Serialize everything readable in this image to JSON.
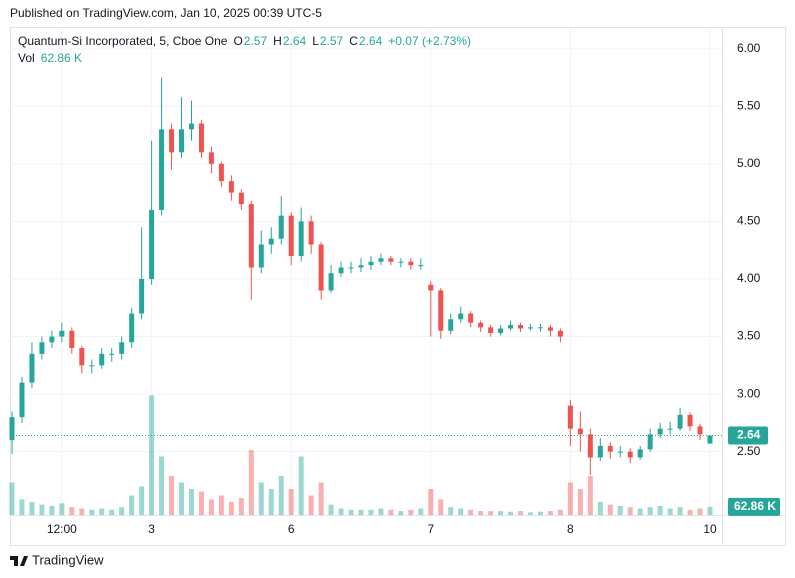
{
  "published": "Published on TradingView.com, Jan 10, 2025 00:39 UTC-5",
  "brand": "TradingView",
  "chart_data": {
    "type": "candlestick",
    "legend": {
      "symbol": "Quantum-Si Incorporated, 5, Cboe One",
      "ohlc": [
        {
          "key": "O",
          "value": 2.57
        },
        {
          "key": "H",
          "value": 2.64
        },
        {
          "key": "L",
          "value": 2.57
        },
        {
          "key": "C",
          "value": 2.64
        }
      ],
      "change": "+0.07 (+2.73%)"
    },
    "categories": [
      null,
      null,
      null,
      null,
      null,
      "12:00",
      null,
      null,
      null,
      null,
      null,
      null,
      null,
      null,
      "3",
      null,
      null,
      null,
      null,
      null,
      null,
      null,
      null,
      null,
      null,
      null,
      null,
      null,
      "6",
      null,
      null,
      null,
      null,
      null,
      null,
      null,
      null,
      null,
      null,
      null,
      null,
      null,
      "7",
      null,
      null,
      null,
      null,
      null,
      null,
      null,
      null,
      null,
      null,
      null,
      null,
      null,
      "8",
      null,
      null,
      null,
      null,
      null,
      null,
      null,
      null,
      null,
      null,
      null,
      null,
      null,
      "10"
    ],
    "open": [
      2.6,
      2.8,
      3.1,
      3.35,
      3.45,
      3.5,
      3.55,
      3.4,
      3.25,
      3.25,
      3.35,
      3.35,
      3.45,
      3.7,
      4.0,
      4.6,
      5.3,
      5.1,
      5.3,
      5.35,
      5.1,
      5.0,
      4.85,
      4.75,
      4.65,
      4.1,
      4.3,
      4.35,
      4.55,
      4.2,
      4.5,
      4.3,
      3.9,
      4.05,
      4.1,
      4.1,
      4.12,
      4.15,
      4.18,
      4.15,
      4.15,
      4.12,
      3.95,
      3.9,
      3.55,
      3.65,
      3.7,
      3.62,
      3.58,
      3.53,
      3.57,
      3.6,
      3.57,
      3.58,
      3.58,
      3.55,
      2.9,
      2.7,
      2.65,
      2.45,
      2.55,
      2.5,
      2.5,
      2.45,
      2.52,
      2.65,
      2.7,
      2.7,
      2.82,
      2.72,
      2.57
    ],
    "high": [
      2.85,
      3.15,
      3.45,
      3.5,
      3.55,
      3.62,
      3.58,
      3.42,
      3.3,
      3.4,
      3.4,
      3.5,
      3.75,
      4.45,
      5.2,
      5.75,
      5.35,
      5.58,
      5.55,
      5.38,
      5.15,
      5.02,
      4.9,
      4.78,
      4.68,
      4.42,
      4.45,
      4.72,
      4.58,
      4.62,
      4.55,
      4.32,
      4.12,
      4.15,
      4.15,
      4.18,
      4.2,
      4.22,
      4.2,
      4.18,
      4.18,
      4.18,
      3.98,
      3.92,
      3.7,
      3.76,
      3.72,
      3.64,
      3.6,
      3.6,
      3.64,
      3.62,
      3.61,
      3.61,
      3.6,
      3.57,
      2.95,
      2.85,
      2.7,
      2.62,
      2.58,
      2.55,
      2.53,
      2.55,
      2.7,
      2.75,
      2.76,
      2.88,
      2.84,
      2.74,
      2.64
    ],
    "low": [
      2.48,
      2.75,
      3.05,
      3.3,
      3.4,
      3.45,
      3.35,
      3.18,
      3.18,
      3.22,
      3.28,
      3.3,
      3.4,
      3.65,
      3.95,
      4.55,
      4.95,
      5.05,
      5.2,
      5.05,
      4.92,
      4.8,
      4.68,
      4.6,
      3.82,
      4.05,
      4.22,
      4.3,
      4.12,
      4.15,
      4.22,
      3.82,
      3.88,
      4.02,
      4.05,
      4.06,
      4.08,
      4.12,
      4.12,
      4.1,
      4.08,
      4.08,
      3.5,
      3.48,
      3.52,
      3.62,
      3.58,
      3.54,
      3.5,
      3.51,
      3.55,
      3.54,
      3.55,
      3.54,
      3.5,
      3.45,
      2.55,
      2.5,
      2.3,
      2.42,
      2.44,
      2.45,
      2.4,
      2.43,
      2.5,
      2.62,
      2.65,
      2.68,
      2.68,
      2.6,
      2.57
    ],
    "close": [
      2.8,
      3.1,
      3.35,
      3.45,
      3.5,
      3.55,
      3.4,
      3.25,
      3.25,
      3.35,
      3.35,
      3.45,
      3.7,
      4.0,
      4.6,
      5.3,
      5.1,
      5.3,
      5.35,
      5.1,
      5.0,
      4.85,
      4.75,
      4.65,
      4.1,
      4.3,
      4.35,
      4.55,
      4.2,
      4.5,
      4.3,
      3.9,
      4.05,
      4.1,
      4.1,
      4.12,
      4.15,
      4.18,
      4.15,
      4.15,
      4.12,
      4.12,
      3.9,
      3.55,
      3.65,
      3.7,
      3.62,
      3.58,
      3.53,
      3.57,
      3.6,
      3.57,
      3.58,
      3.58,
      3.55,
      3.5,
      2.7,
      2.65,
      2.45,
      2.55,
      2.5,
      2.5,
      2.45,
      2.52,
      2.65,
      2.7,
      2.7,
      2.82,
      2.72,
      2.65,
      2.64
    ],
    "up_color": "#26a69a",
    "down_color": "#ef5350",
    "ylim": [
      1.95,
      6.18
    ],
    "yticks": [
      {
        "value": 2.5,
        "label": "2.50"
      },
      {
        "value": 3,
        "label": "3.00"
      },
      {
        "value": 3.5,
        "label": "3.50"
      },
      {
        "value": 4,
        "label": "4.00"
      },
      {
        "value": 4.5,
        "label": "4.50"
      },
      {
        "value": 5,
        "label": "5.00"
      },
      {
        "value": 5.5,
        "label": "5.50"
      },
      {
        "value": 6,
        "label": "6.00"
      }
    ],
    "grid": true,
    "last_price": 2.64,
    "volume": {
      "name": "Vol",
      "values": [
        250,
        120,
        100,
        80,
        70,
        90,
        60,
        50,
        40,
        50,
        40,
        60,
        150,
        220,
        920,
        450,
        300,
        250,
        200,
        180,
        120,
        150,
        100,
        130,
        500,
        250,
        200,
        300,
        200,
        450,
        150,
        250,
        80,
        50,
        40,
        40,
        40,
        50,
        40,
        30,
        40,
        50,
        200,
        120,
        60,
        50,
        40,
        30,
        30,
        30,
        25,
        30,
        20,
        25,
        30,
        40,
        250,
        200,
        300,
        100,
        80,
        70,
        60,
        50,
        60,
        70,
        50,
        60,
        40,
        50,
        62.86
      ],
      "last_label": "62.86 K",
      "vlim": [
        0,
        1000
      ]
    }
  }
}
